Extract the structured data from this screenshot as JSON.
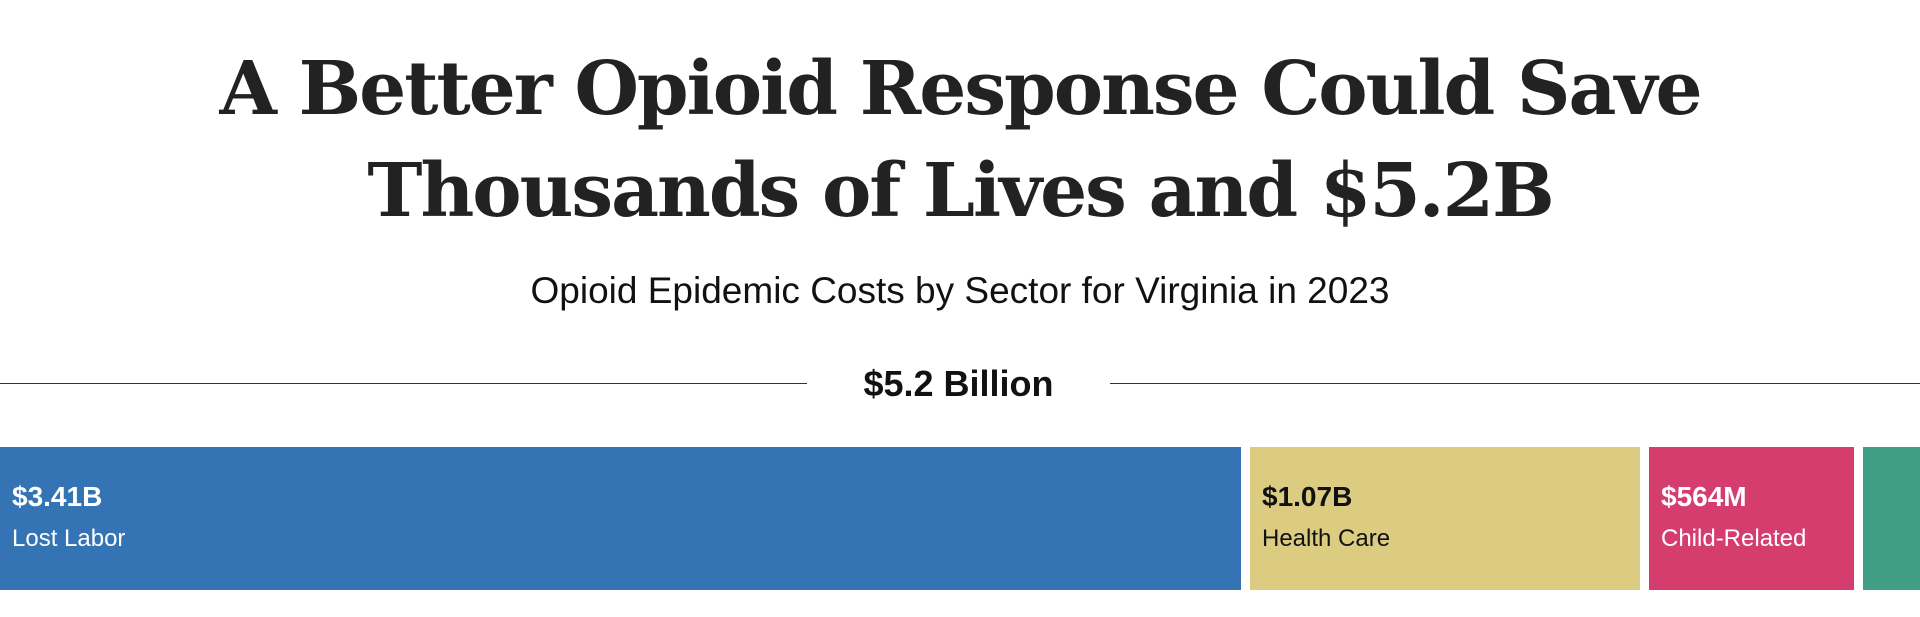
{
  "chart_data": {
    "type": "bar",
    "subtype": "stacked-horizontal-100",
    "title_lines": [
      "A Better Opioid Response Could Save",
      "Thousands of Lives and $5.2B"
    ],
    "subtitle": "Opioid Epidemic Costs by Sector for Virginia in 2023",
    "total_label": "$5.2 Billion",
    "total_value": 5.2,
    "unit": "billion USD",
    "segments": [
      {
        "name": "Lost Labor",
        "label": "$3.41B",
        "value": 3.41,
        "color": "#3474b5",
        "text": "light"
      },
      {
        "name": "Health Care",
        "label": "$1.07B",
        "value": 1.07,
        "color": "#dbcc82",
        "text": "dark"
      },
      {
        "name": "Child-Related",
        "label": "$564M",
        "value": 0.564,
        "color": "#d63d6f",
        "text": "light"
      },
      {
        "name": "",
        "label": "",
        "value": 0.156,
        "color": "#3f9e84",
        "text": "light"
      }
    ],
    "legend": "none",
    "grid": false
  }
}
